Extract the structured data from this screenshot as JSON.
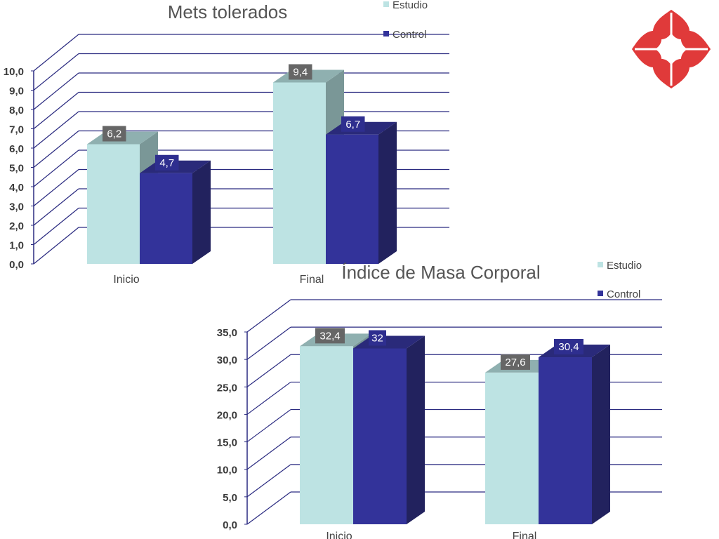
{
  "chart_data": [
    {
      "type": "bar",
      "title": "Mets tolerados",
      "categories": [
        "Inicio",
        "Final"
      ],
      "series": [
        {
          "name": "Estudio",
          "values": [
            6.2,
            9.4
          ],
          "labels": [
            "6,2",
            "9,4"
          ]
        },
        {
          "name": "Control",
          "values": [
            4.7,
            6.7
          ],
          "labels": [
            "4,7",
            "6,7"
          ]
        }
      ],
      "ylim": [
        0,
        10
      ],
      "yticks": [
        "0,0",
        "1,0",
        "2,0",
        "3,0",
        "4,0",
        "5,0",
        "6,0",
        "7,0",
        "8,0",
        "9,0",
        "10,0"
      ],
      "legend": "top-right",
      "grid": true
    },
    {
      "type": "bar",
      "title": "Índice de Masa Corporal",
      "categories": [
        "Inicio",
        "Final"
      ],
      "series": [
        {
          "name": "Estudio",
          "values": [
            32.4,
            27.6
          ],
          "labels": [
            "32,4",
            "27,6"
          ]
        },
        {
          "name": "Control",
          "values": [
            32,
            30.4
          ],
          "labels": [
            "32",
            "30,4"
          ]
        }
      ],
      "ylim": [
        0,
        35
      ],
      "yticks": [
        "0,0",
        "5,0",
        "10,0",
        "15,0",
        "20,0",
        "25,0",
        "30,0",
        "35,0"
      ],
      "legend": "top-right",
      "grid": true
    }
  ],
  "colors": {
    "estudio_front": "#bde3e3",
    "estudio_side": "#7a9797",
    "estudio_top": "#8fb0b0",
    "control_front": "#33339a",
    "control_side": "#22225e",
    "control_top": "#2a2a7a",
    "axis": "#2a2a80",
    "label_box_estudio": "#666666",
    "label_box_control": "#2e2e8f",
    "logo": "#e03a3a"
  },
  "logo": {
    "icon": "heart-clover-logo-icon"
  }
}
